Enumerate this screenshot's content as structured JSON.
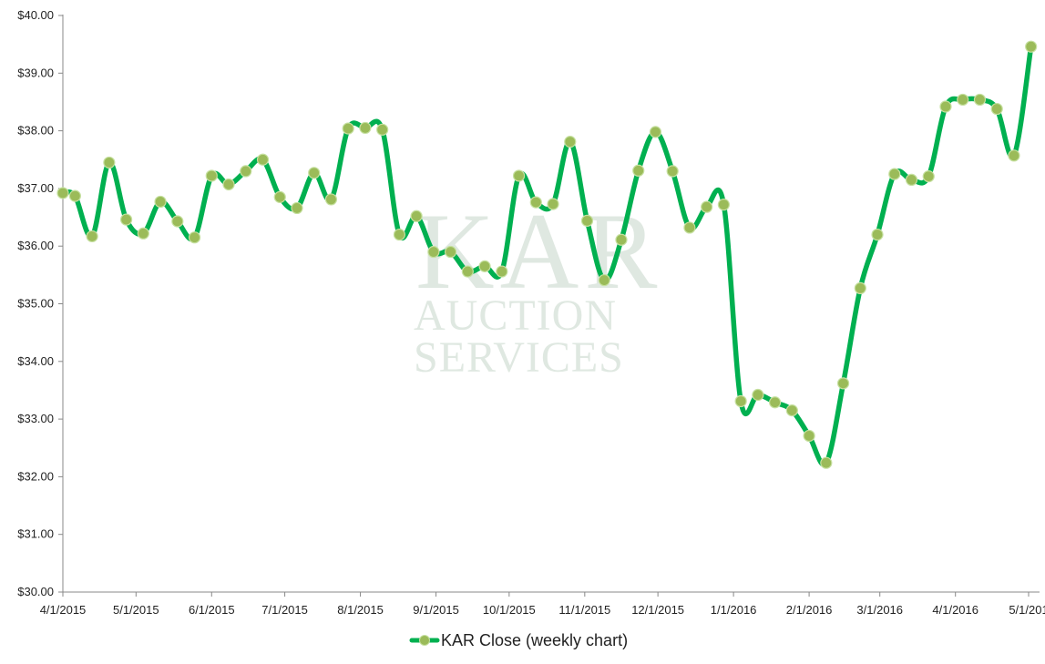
{
  "watermark": {
    "line1": "KAR",
    "line2": "AUCTION",
    "line3": "SERVICES"
  },
  "legend": {
    "label": "KAR Close (weekly chart)"
  },
  "colors": {
    "line": "#00b050",
    "marker_fill": "#9bbb59",
    "marker_stroke": "#c6e0a0",
    "axis": "#888888"
  },
  "chart_data": {
    "type": "line",
    "title": "",
    "xlabel": "",
    "ylabel": "",
    "ylim": [
      30,
      40
    ],
    "yticks": [
      "$30.00",
      "$31.00",
      "$32.00",
      "$33.00",
      "$34.00",
      "$35.00",
      "$36.00",
      "$37.00",
      "$38.00",
      "$39.00",
      "$40.00"
    ],
    "xlim": [
      "2015-04-01",
      "2016-05-01"
    ],
    "xticks": [
      "4/1/2015",
      "5/1/2015",
      "6/1/2015",
      "7/1/2015",
      "8/1/2015",
      "9/1/2015",
      "10/1/2015",
      "11/1/2015",
      "12/1/2015",
      "1/1/2016",
      "2/1/2016",
      "3/1/2016",
      "4/1/2016",
      "5/1/201"
    ],
    "xtick_dates": [
      "2015-04-01",
      "2015-05-01",
      "2015-06-01",
      "2015-07-01",
      "2015-08-01",
      "2015-09-01",
      "2015-10-01",
      "2015-11-01",
      "2015-12-01",
      "2016-01-01",
      "2016-02-01",
      "2016-03-01",
      "2016-04-01",
      "2016-05-01"
    ],
    "grid": false,
    "legend_position": "bottom",
    "series": [
      {
        "name": "KAR Close (weekly chart)",
        "x": [
          "2015-04-01",
          "2015-04-06",
          "2015-04-13",
          "2015-04-20",
          "2015-04-27",
          "2015-05-04",
          "2015-05-11",
          "2015-05-18",
          "2015-05-25",
          "2015-06-01",
          "2015-06-08",
          "2015-06-15",
          "2015-06-22",
          "2015-06-29",
          "2015-07-06",
          "2015-07-13",
          "2015-07-20",
          "2015-07-27",
          "2015-08-03",
          "2015-08-10",
          "2015-08-17",
          "2015-08-24",
          "2015-08-31",
          "2015-09-07",
          "2015-09-14",
          "2015-09-21",
          "2015-09-28",
          "2015-10-05",
          "2015-10-12",
          "2015-10-19",
          "2015-10-26",
          "2015-11-02",
          "2015-11-09",
          "2015-11-16",
          "2015-11-23",
          "2015-11-30",
          "2015-12-07",
          "2015-12-14",
          "2015-12-21",
          "2015-12-28",
          "2016-01-04",
          "2016-01-11",
          "2016-01-18",
          "2016-01-25",
          "2016-02-01",
          "2016-02-08",
          "2016-02-15",
          "2016-02-22",
          "2016-02-29",
          "2016-03-07",
          "2016-03-14",
          "2016-03-21",
          "2016-03-28",
          "2016-04-04",
          "2016-04-11",
          "2016-04-18",
          "2016-04-25",
          "2016-05-02"
        ],
        "values": [
          36.92,
          36.87,
          36.17,
          37.45,
          36.46,
          36.22,
          36.77,
          36.43,
          36.15,
          37.22,
          37.07,
          37.3,
          37.5,
          36.85,
          36.66,
          37.27,
          36.81,
          38.04,
          38.05,
          38.02,
          36.2,
          36.52,
          35.9,
          35.9,
          35.56,
          35.65,
          35.56,
          37.22,
          36.76,
          36.73,
          37.81,
          36.44,
          35.41,
          36.11,
          37.31,
          37.98,
          37.3,
          36.32,
          36.68,
          36.72,
          33.31,
          33.42,
          33.29,
          33.15,
          32.71,
          32.24,
          33.62,
          35.27,
          36.2,
          37.25,
          37.15,
          37.21,
          38.42,
          38.54,
          38.54,
          38.38,
          37.57,
          39.46
        ]
      }
    ]
  }
}
